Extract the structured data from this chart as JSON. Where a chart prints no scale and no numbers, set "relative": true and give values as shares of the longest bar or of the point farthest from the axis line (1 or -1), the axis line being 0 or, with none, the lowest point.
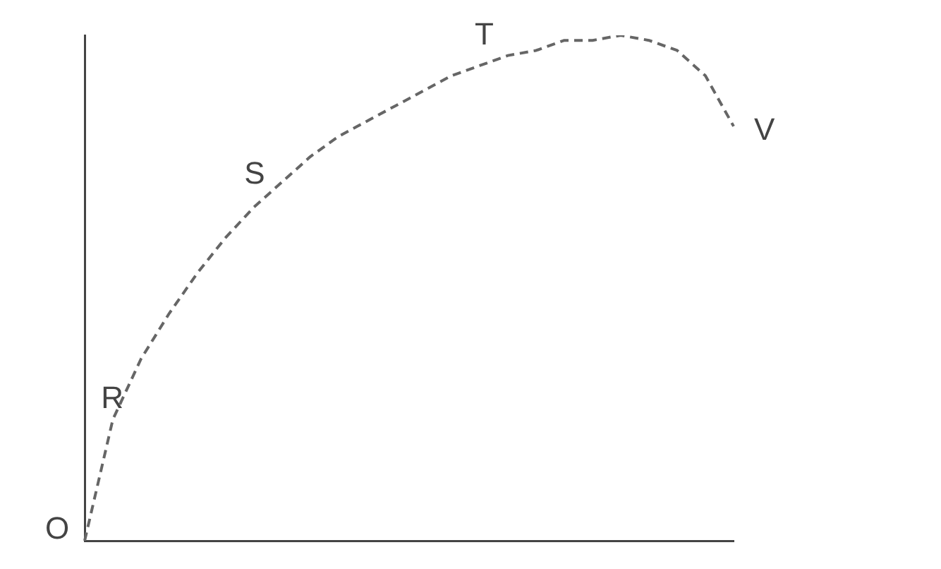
{
  "chart_data": {
    "type": "line",
    "relative": true,
    "categories": [
      null,
      null,
      null,
      null,
      null,
      null,
      null,
      null,
      null,
      null,
      null,
      null,
      null,
      null,
      null,
      null,
      null,
      null,
      null,
      null,
      null,
      null,
      null,
      null
    ],
    "series": [
      {
        "color": "#666666",
        "values": [
          0,
          0.24,
          0.36,
          0.45,
          0.53,
          0.6,
          0.66,
          0.71,
          0.76,
          0.8,
          0.83,
          0.86,
          0.89,
          0.92,
          0.94,
          0.96,
          0.97,
          0.99,
          0.99,
          1,
          0.99,
          0.97,
          0.92,
          0.82
        ]
      }
    ],
    "line_style": "dashed",
    "marker": "none",
    "legend": false,
    "annotations": [
      "O",
      "R",
      "S",
      "T",
      "V"
    ]
  }
}
